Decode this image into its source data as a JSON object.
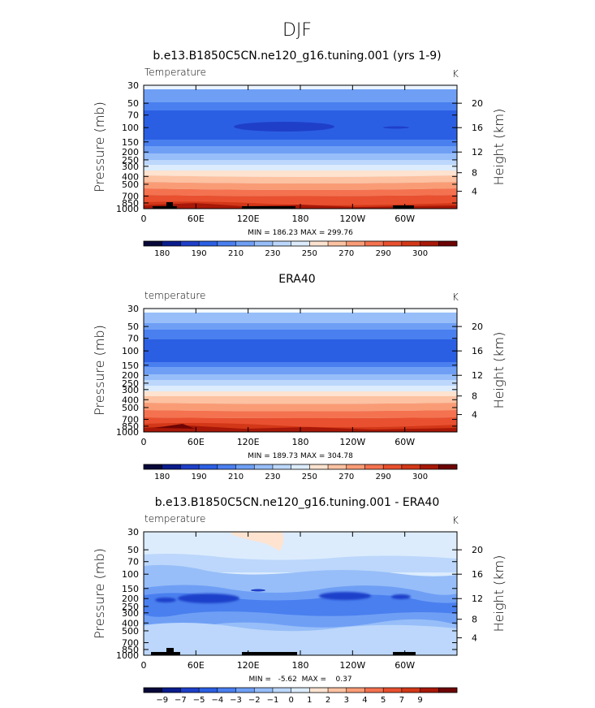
{
  "figure": {
    "main_title": "DJF",
    "colors": {
      "temperature_levels": [
        "#08083a",
        "#0a1c8c",
        "#1f3fc9",
        "#2b5fe3",
        "#4a7fef",
        "#6f9ff5",
        "#97bef8",
        "#bcd7fb",
        "#dcecfd",
        "#fde3d0",
        "#fcc2a2",
        "#f99c76",
        "#f4724f",
        "#e8502f",
        "#d23818",
        "#a81808",
        "#6e0404"
      ],
      "difference_levels": [
        "#08083a",
        "#0a1c8c",
        "#1f3fc9",
        "#2b5fe3",
        "#4a7fef",
        "#6f9ff5",
        "#97bef8",
        "#bcd7fb",
        "#dcecfd",
        "#fde3d0",
        "#fcc2a2",
        "#f99c76",
        "#f4724f",
        "#e8502f",
        "#d23818",
        "#a81808",
        "#6e0404"
      ]
    }
  },
  "chart_data": [
    {
      "type": "heatmap",
      "title": "b.e13.B1850C5CN.ne120_g16.tuning.001 (yrs 1-9)",
      "variable_label": "Temperature",
      "units": "K",
      "ylabel": "Pressure (mb)",
      "ylabel_right": "Height (km)",
      "x_ticks": [
        "0",
        "60E",
        "120E",
        "180",
        "120W",
        "60W"
      ],
      "y_ticks": [
        "30",
        "50",
        "70",
        "100",
        "150",
        "200",
        "250",
        "300",
        "400",
        "500",
        "700",
        "850",
        "1000"
      ],
      "y_ticks_right": [
        "20",
        "16",
        "12",
        "8",
        "4"
      ],
      "stats": "MIN = 186.23  MAX = 299.76",
      "colorbar_labels": [
        "180",
        "190",
        "210",
        "230",
        "250",
        "270",
        "290",
        "300"
      ],
      "pressure_levels": [
        30,
        50,
        70,
        100,
        150,
        200,
        250,
        300,
        400,
        500,
        700,
        850,
        1000
      ],
      "zonal_mean_temperature": [
        217,
        213,
        208,
        198,
        202,
        208,
        216,
        225,
        241,
        252,
        271,
        282,
        290
      ]
    },
    {
      "type": "heatmap",
      "title": "ERA40",
      "variable_label": "temperature",
      "units": "K",
      "ylabel": "Pressure (mb)",
      "ylabel_right": "Height (km)",
      "x_ticks": [
        "0",
        "60E",
        "120E",
        "180",
        "120W",
        "60W"
      ],
      "y_ticks": [
        "30",
        "50",
        "70",
        "100",
        "150",
        "200",
        "250",
        "300",
        "400",
        "500",
        "700",
        "850",
        "1000"
      ],
      "y_ticks_right": [
        "20",
        "16",
        "12",
        "8",
        "4"
      ],
      "stats": "MIN = 189.73  MAX = 304.78",
      "colorbar_labels": [
        "180",
        "190",
        "210",
        "230",
        "250",
        "270",
        "290",
        "300"
      ],
      "pressure_levels": [
        30,
        50,
        70,
        100,
        150,
        200,
        250,
        300,
        400,
        500,
        700,
        850,
        1000
      ],
      "zonal_mean_temperature": [
        219,
        214,
        208,
        200,
        204,
        210,
        217,
        226,
        243,
        254,
        273,
        284,
        293
      ]
    },
    {
      "type": "heatmap",
      "title": "b.e13.B1850C5CN.ne120_g16.tuning.001 - ERA40",
      "variable_label": "temperature",
      "units": "K",
      "ylabel": "Pressure (mb)",
      "ylabel_right": "Height (km)",
      "x_ticks": [
        "0",
        "60E",
        "120E",
        "180",
        "120W",
        "60W"
      ],
      "y_ticks": [
        "30",
        "50",
        "70",
        "100",
        "150",
        "200",
        "250",
        "300",
        "400",
        "500",
        "700",
        "850",
        "1000"
      ],
      "y_ticks_right": [
        "20",
        "16",
        "12",
        "8",
        "4"
      ],
      "stats": "MIN =   -5.62  MAX =    0.37",
      "colorbar_labels": [
        "-9",
        "-7",
        "-5",
        "-4",
        "-3",
        "-2",
        "-1",
        "0",
        "1",
        "2",
        "3",
        "4",
        "5",
        "7",
        "9"
      ]
    }
  ]
}
